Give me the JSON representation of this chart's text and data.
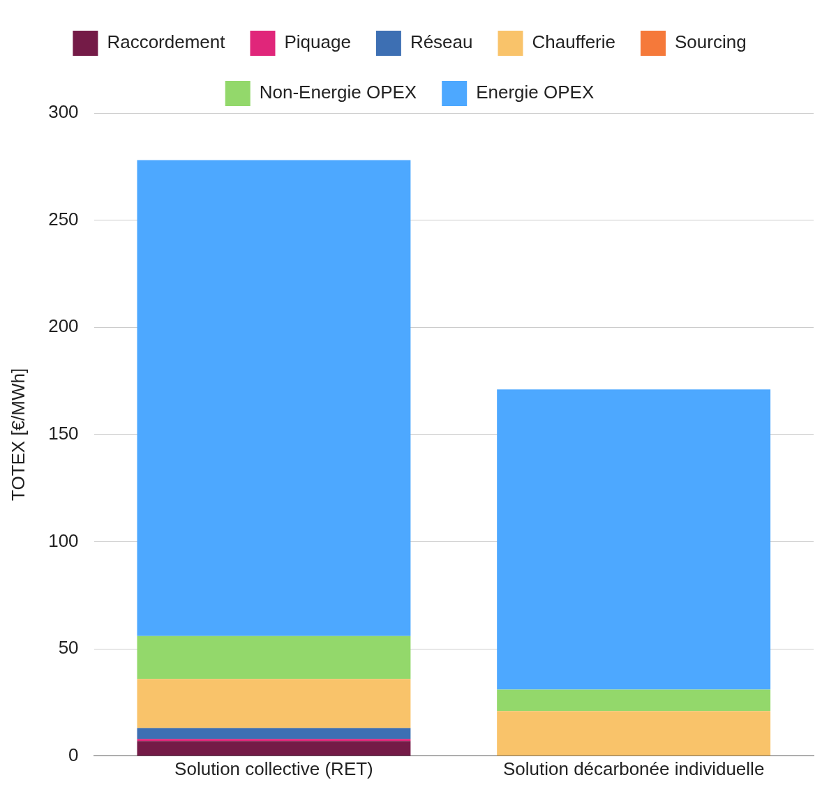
{
  "chart_data": {
    "type": "bar",
    "stacked": true,
    "ylabel": "TOTEX [€/MWh]",
    "categories": [
      "Solution collective (RET)",
      "Solution décarbonée individuelle"
    ],
    "series": [
      {
        "name": "Raccordement",
        "color": "#741b47",
        "values": [
          7,
          0
        ]
      },
      {
        "name": "Piquage",
        "color": "#e0267a",
        "values": [
          1,
          0
        ]
      },
      {
        "name": "Réseau",
        "color": "#3d6fb3",
        "values": [
          5,
          0
        ]
      },
      {
        "name": "Chaufferie",
        "color": "#f9c36a",
        "values": [
          23,
          21
        ]
      },
      {
        "name": "Sourcing",
        "color": "#f5793a",
        "values": [
          0,
          0
        ]
      },
      {
        "name": "Non-Energie OPEX",
        "color": "#93d86b",
        "values": [
          20,
          10
        ]
      },
      {
        "name": "Energie OPEX",
        "color": "#4da8ff",
        "values": [
          222,
          140
        ]
      }
    ],
    "ylim": [
      0,
      300
    ],
    "yticks": [
      0,
      50,
      100,
      150,
      200,
      250,
      300
    ],
    "grid": "y",
    "legend": "top"
  }
}
